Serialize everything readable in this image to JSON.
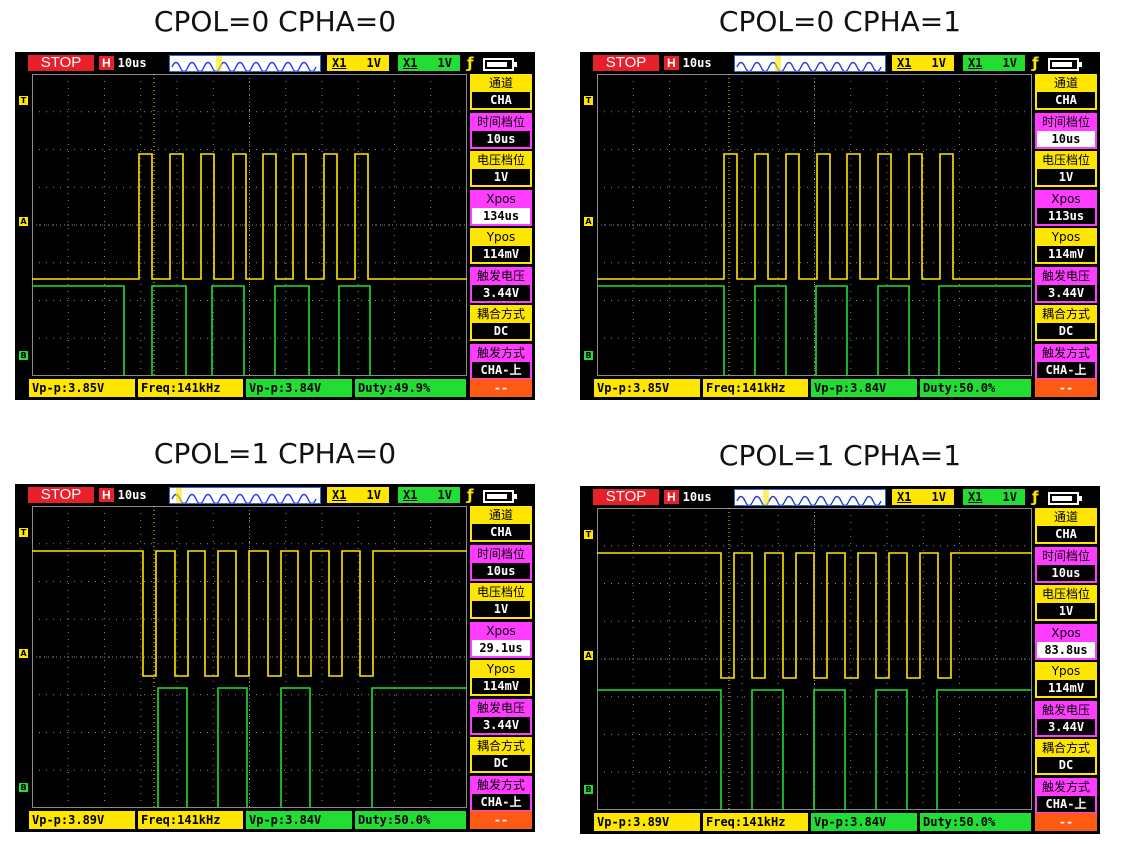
{
  "panels": [
    {
      "title": "CPOL=0 CPHA=0",
      "status": "STOP",
      "timebase_prefix": "H",
      "timebase": "10us",
      "ch1_label": "X1",
      "ch1_scale": "1V",
      "ch2_label": "X1",
      "ch2_scale": "1V",
      "side": [
        {
          "label": "通道",
          "value": "CHA",
          "color": "#ffe600"
        },
        {
          "label": "时间档位",
          "value": "10us",
          "color": "#ff3cff"
        },
        {
          "label": "电压档位",
          "value": "1V",
          "color": "#ffe600"
        },
        {
          "label": "Xpos",
          "value": "134us",
          "color": "#ff3cff",
          "selected": true
        },
        {
          "label": "Ypos",
          "value": "114mV",
          "color": "#ffe600"
        },
        {
          "label": "触发电压",
          "value": "3.44V",
          "color": "#ff3cff"
        },
        {
          "label": "耦合方式",
          "value": "DC",
          "color": "#ffe600"
        },
        {
          "label": "触发方式",
          "value": "CHA-上",
          "color": "#ff3cff"
        }
      ],
      "bottom": {
        "vpp1": "Vp-p:3.85V",
        "freq": "Freq:141kHz",
        "vpp2": "Vp-p:3.84V",
        "duty": "Duty:49.9%",
        "extra": "--"
      }
    },
    {
      "title": "CPOL=0 CPHA=1",
      "status": "STOP",
      "timebase_prefix": "H",
      "timebase": "10us",
      "ch1_label": "X1",
      "ch1_scale": "1V",
      "ch2_label": "X1",
      "ch2_scale": "1V",
      "side": [
        {
          "label": "通道",
          "value": "CHA",
          "color": "#ffe600"
        },
        {
          "label": "时间档位",
          "value": "10us",
          "color": "#ff3cff",
          "selected": true
        },
        {
          "label": "电压档位",
          "value": "1V",
          "color": "#ffe600"
        },
        {
          "label": "Xpos",
          "value": "113us",
          "color": "#ff3cff"
        },
        {
          "label": "Ypos",
          "value": "114mV",
          "color": "#ffe600"
        },
        {
          "label": "触发电压",
          "value": "3.44V",
          "color": "#ff3cff"
        },
        {
          "label": "耦合方式",
          "value": "DC",
          "color": "#ffe600"
        },
        {
          "label": "触发方式",
          "value": "CHA-上",
          "color": "#ff3cff"
        }
      ],
      "bottom": {
        "vpp1": "Vp-p:3.85V",
        "freq": "Freq:141kHz",
        "vpp2": "Vp-p:3.84V",
        "duty": "Duty:50.0%",
        "extra": "--"
      }
    },
    {
      "title": "CPOL=1 CPHA=0",
      "status": "STOP",
      "timebase_prefix": "H",
      "timebase": "10us",
      "ch1_label": "X1",
      "ch1_scale": "1V",
      "ch2_label": "X1",
      "ch2_scale": "1V",
      "side": [
        {
          "label": "通道",
          "value": "CHA",
          "color": "#ffe600"
        },
        {
          "label": "时间档位",
          "value": "10us",
          "color": "#ff3cff"
        },
        {
          "label": "电压档位",
          "value": "1V",
          "color": "#ffe600"
        },
        {
          "label": "Xpos",
          "value": "29.1us",
          "color": "#ff3cff",
          "selected": true
        },
        {
          "label": "Ypos",
          "value": "114mV",
          "color": "#ffe600"
        },
        {
          "label": "触发电压",
          "value": "3.44V",
          "color": "#ff3cff"
        },
        {
          "label": "耦合方式",
          "value": "DC",
          "color": "#ffe600"
        },
        {
          "label": "触发方式",
          "value": "CHA-上",
          "color": "#ff3cff"
        }
      ],
      "bottom": {
        "vpp1": "Vp-p:3.89V",
        "freq": "Freq:141kHz",
        "vpp2": "Vp-p:3.84V",
        "duty": "Duty:50.0%",
        "extra": "--"
      }
    },
    {
      "title": "CPOL=1 CPHA=1",
      "status": "STOP",
      "timebase_prefix": "H",
      "timebase": "10us",
      "ch1_label": "X1",
      "ch1_scale": "1V",
      "ch2_label": "X1",
      "ch2_scale": "1V",
      "side": [
        {
          "label": "通道",
          "value": "CHA",
          "color": "#ffe600"
        },
        {
          "label": "时间档位",
          "value": "10us",
          "color": "#ff3cff"
        },
        {
          "label": "电压档位",
          "value": "1V",
          "color": "#ffe600"
        },
        {
          "label": "Xpos",
          "value": "83.8us",
          "color": "#ff3cff",
          "selected": true
        },
        {
          "label": "Ypos",
          "value": "114mV",
          "color": "#ffe600"
        },
        {
          "label": "触发电压",
          "value": "3.44V",
          "color": "#ff3cff"
        },
        {
          "label": "耦合方式",
          "value": "DC",
          "color": "#ffe600"
        },
        {
          "label": "触发方式",
          "value": "CHA-上",
          "color": "#ff3cff"
        }
      ],
      "bottom": {
        "vpp1": "Vp-p:3.89V",
        "freq": "Freq:141kHz",
        "vpp2": "Vp-p:3.84V",
        "duty": "Duty:50.0%",
        "extra": "--"
      }
    }
  ],
  "colors": {
    "ch1": "#ffe600",
    "ch2": "#22dd33",
    "grid": "#8a8a8a"
  },
  "icons": {
    "trigger": "rising-edge-icon",
    "battery": "battery-icon"
  },
  "marker_labels": {
    "trigger": "T",
    "ch_a": "A",
    "ch_b": "B"
  }
}
